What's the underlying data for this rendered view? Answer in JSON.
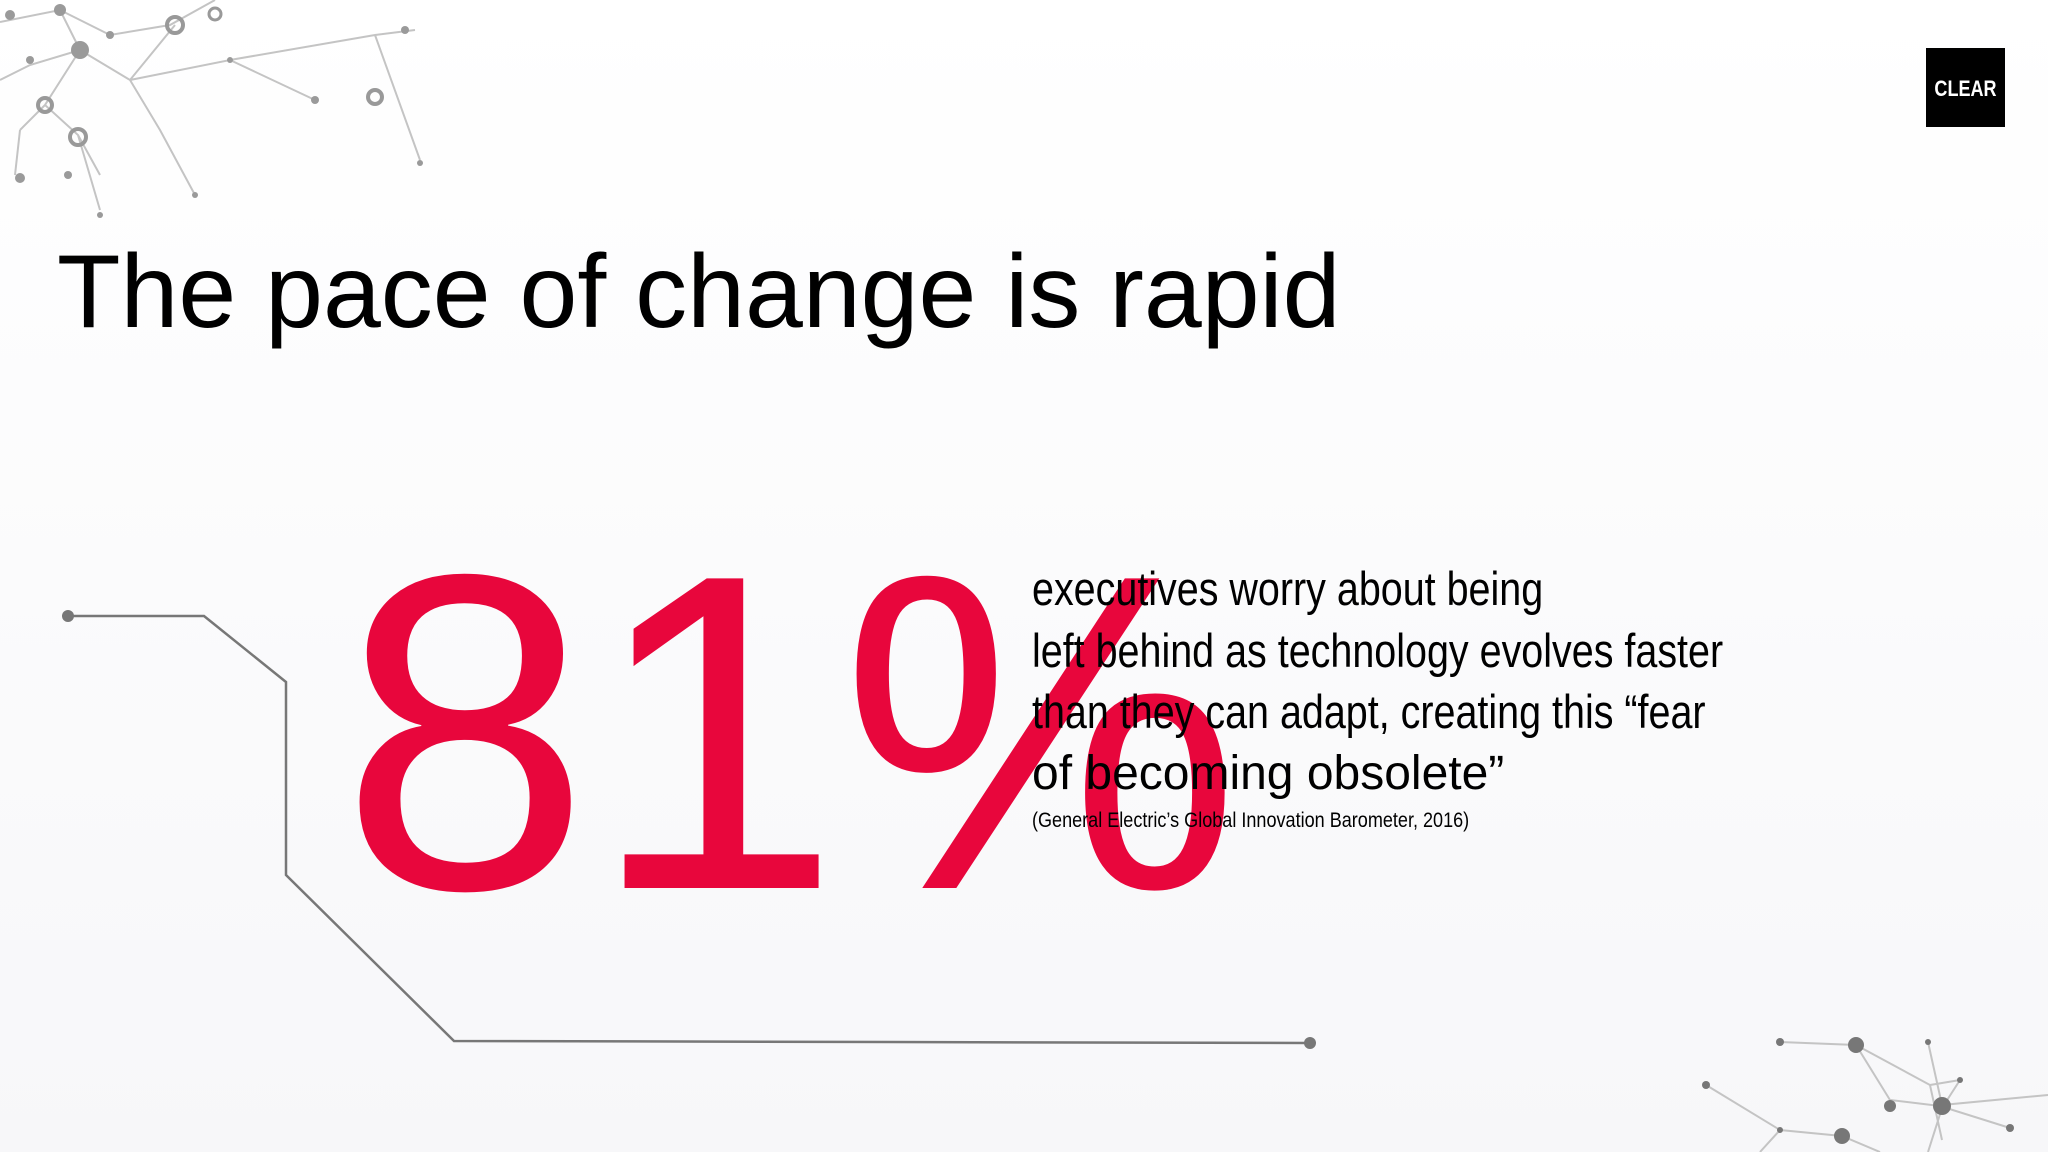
{
  "slide": {
    "title": "The pace of change is rapid",
    "logo": "CLEAR",
    "statistic": "81%",
    "body_lines": [
      "executives worry about being",
      "left behind as technology evolves faster",
      "than they can adapt, creating this “fear",
      "of becoming obsolete”"
    ],
    "citation": "(General Electric’s Global Innovation Barometer, 2016)"
  }
}
